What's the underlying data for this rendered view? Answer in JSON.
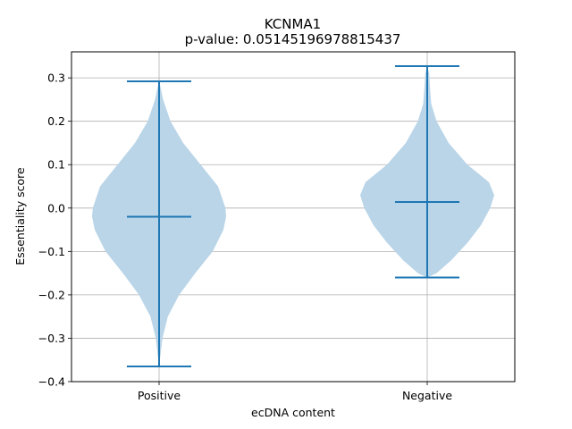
{
  "chart_data": {
    "type": "violin",
    "title": "KCNMA1",
    "subtitle": "p-value: 0.05145196978815437",
    "xlabel": "ecDNA content",
    "ylabel": "Essentiality score",
    "categories": [
      "Positive",
      "Negative"
    ],
    "ylim": [
      -0.4,
      0.36
    ],
    "yticks": [
      -0.4,
      -0.3,
      -0.2,
      -0.1,
      0.0,
      0.1,
      0.2,
      0.3
    ],
    "ytick_labels": [
      "−0.4",
      "−0.3",
      "−0.2",
      "−0.1",
      "0.0",
      "0.1",
      "0.2",
      "0.3"
    ],
    "grid": true,
    "colors": {
      "body": "#bad5e8",
      "line": "#1f77b4"
    },
    "series": [
      {
        "category": "Positive",
        "min": -0.365,
        "median": -0.02,
        "max": 0.292,
        "density": [
          [
            -0.365,
            0.0
          ],
          [
            -0.34,
            0.02
          ],
          [
            -0.3,
            0.05
          ],
          [
            -0.25,
            0.13
          ],
          [
            -0.2,
            0.3
          ],
          [
            -0.15,
            0.54
          ],
          [
            -0.1,
            0.8
          ],
          [
            -0.05,
            0.96
          ],
          [
            -0.02,
            1.0
          ],
          [
            0.0,
            0.99
          ],
          [
            0.05,
            0.88
          ],
          [
            0.1,
            0.62
          ],
          [
            0.15,
            0.36
          ],
          [
            0.2,
            0.17
          ],
          [
            0.25,
            0.06
          ],
          [
            0.28,
            0.02
          ],
          [
            0.292,
            0.0
          ]
        ]
      },
      {
        "category": "Negative",
        "min": -0.16,
        "median": 0.014,
        "max": 0.327,
        "density": [
          [
            -0.16,
            0.0
          ],
          [
            -0.15,
            0.14
          ],
          [
            -0.12,
            0.36
          ],
          [
            -0.08,
            0.6
          ],
          [
            -0.04,
            0.8
          ],
          [
            0.0,
            0.94
          ],
          [
            0.03,
            1.0
          ],
          [
            0.06,
            0.92
          ],
          [
            0.1,
            0.6
          ],
          [
            0.15,
            0.32
          ],
          [
            0.2,
            0.14
          ],
          [
            0.24,
            0.06
          ],
          [
            0.28,
            0.04
          ],
          [
            0.31,
            0.03
          ],
          [
            0.327,
            0.0
          ]
        ]
      }
    ]
  }
}
